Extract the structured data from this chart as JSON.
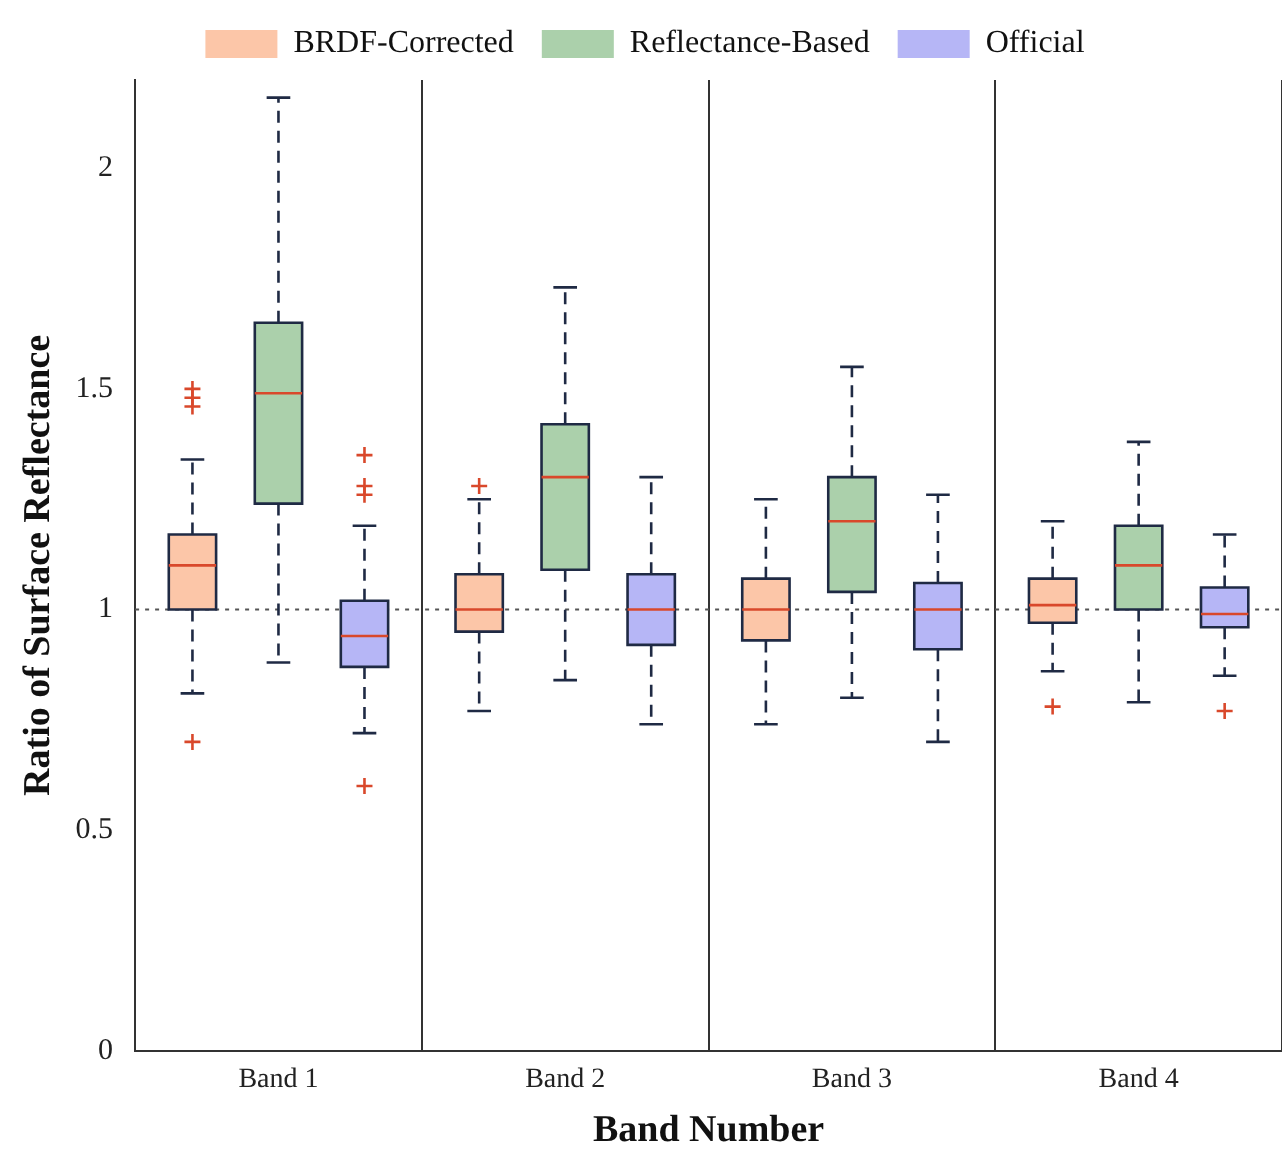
{
  "chart_data": {
    "type": "box",
    "xlabel": "Band Number",
    "ylabel": "Ratio of Surface Reflectance",
    "categories": [
      "Band 1",
      "Band 2",
      "Band 3",
      "Band 4"
    ],
    "ylim": [
      0,
      2.2
    ],
    "yticks": [
      0,
      0.5,
      1,
      1.5,
      2
    ],
    "grid": "x",
    "legend": "top",
    "ref_lines": [
      {
        "axis": "y",
        "value": 1,
        "color": "#555555",
        "line_style": "dotted"
      }
    ],
    "series": [
      {
        "name": "BRDF-Corrected",
        "color": "#fcc6a8",
        "boxes": [
          {
            "low": 0.81,
            "q1": 1.0,
            "median": 1.1,
            "q3": 1.17,
            "high": 1.34,
            "outliers": [
              1.5,
              1.48,
              1.46,
              0.7
            ]
          },
          {
            "low": 0.77,
            "q1": 0.95,
            "median": 1.0,
            "q3": 1.08,
            "high": 1.25,
            "outliers": [
              1.28
            ]
          },
          {
            "low": 0.74,
            "q1": 0.93,
            "median": 1.0,
            "q3": 1.07,
            "high": 1.25
          },
          {
            "low": 0.86,
            "q1": 0.97,
            "median": 1.01,
            "q3": 1.07,
            "high": 1.2,
            "outliers": [
              0.78
            ]
          }
        ]
      },
      {
        "name": "Reflectance-Based",
        "color": "#abd0ab",
        "boxes": [
          {
            "low": 0.88,
            "q1": 1.24,
            "median": 1.49,
            "q3": 1.65,
            "high": 2.16
          },
          {
            "low": 0.84,
            "q1": 1.09,
            "median": 1.3,
            "q3": 1.42,
            "high": 1.73
          },
          {
            "low": 0.8,
            "q1": 1.04,
            "median": 1.2,
            "q3": 1.3,
            "high": 1.55
          },
          {
            "low": 0.79,
            "q1": 1.0,
            "median": 1.1,
            "q3": 1.19,
            "high": 1.38
          }
        ]
      },
      {
        "name": "Official",
        "color": "#b6b6f6",
        "boxes": [
          {
            "low": 0.72,
            "q1": 0.87,
            "median": 0.94,
            "q3": 1.02,
            "high": 1.19,
            "outliers": [
              1.35,
              1.28,
              1.26,
              0.6
            ]
          },
          {
            "low": 0.74,
            "q1": 0.92,
            "median": 1.0,
            "q3": 1.08,
            "high": 1.3
          },
          {
            "low": 0.7,
            "q1": 0.91,
            "median": 1.0,
            "q3": 1.06,
            "high": 1.26
          },
          {
            "low": 0.85,
            "q1": 0.96,
            "median": 0.99,
            "q3": 1.05,
            "high": 1.17,
            "outliers": [
              0.77
            ]
          }
        ]
      }
    ]
  }
}
